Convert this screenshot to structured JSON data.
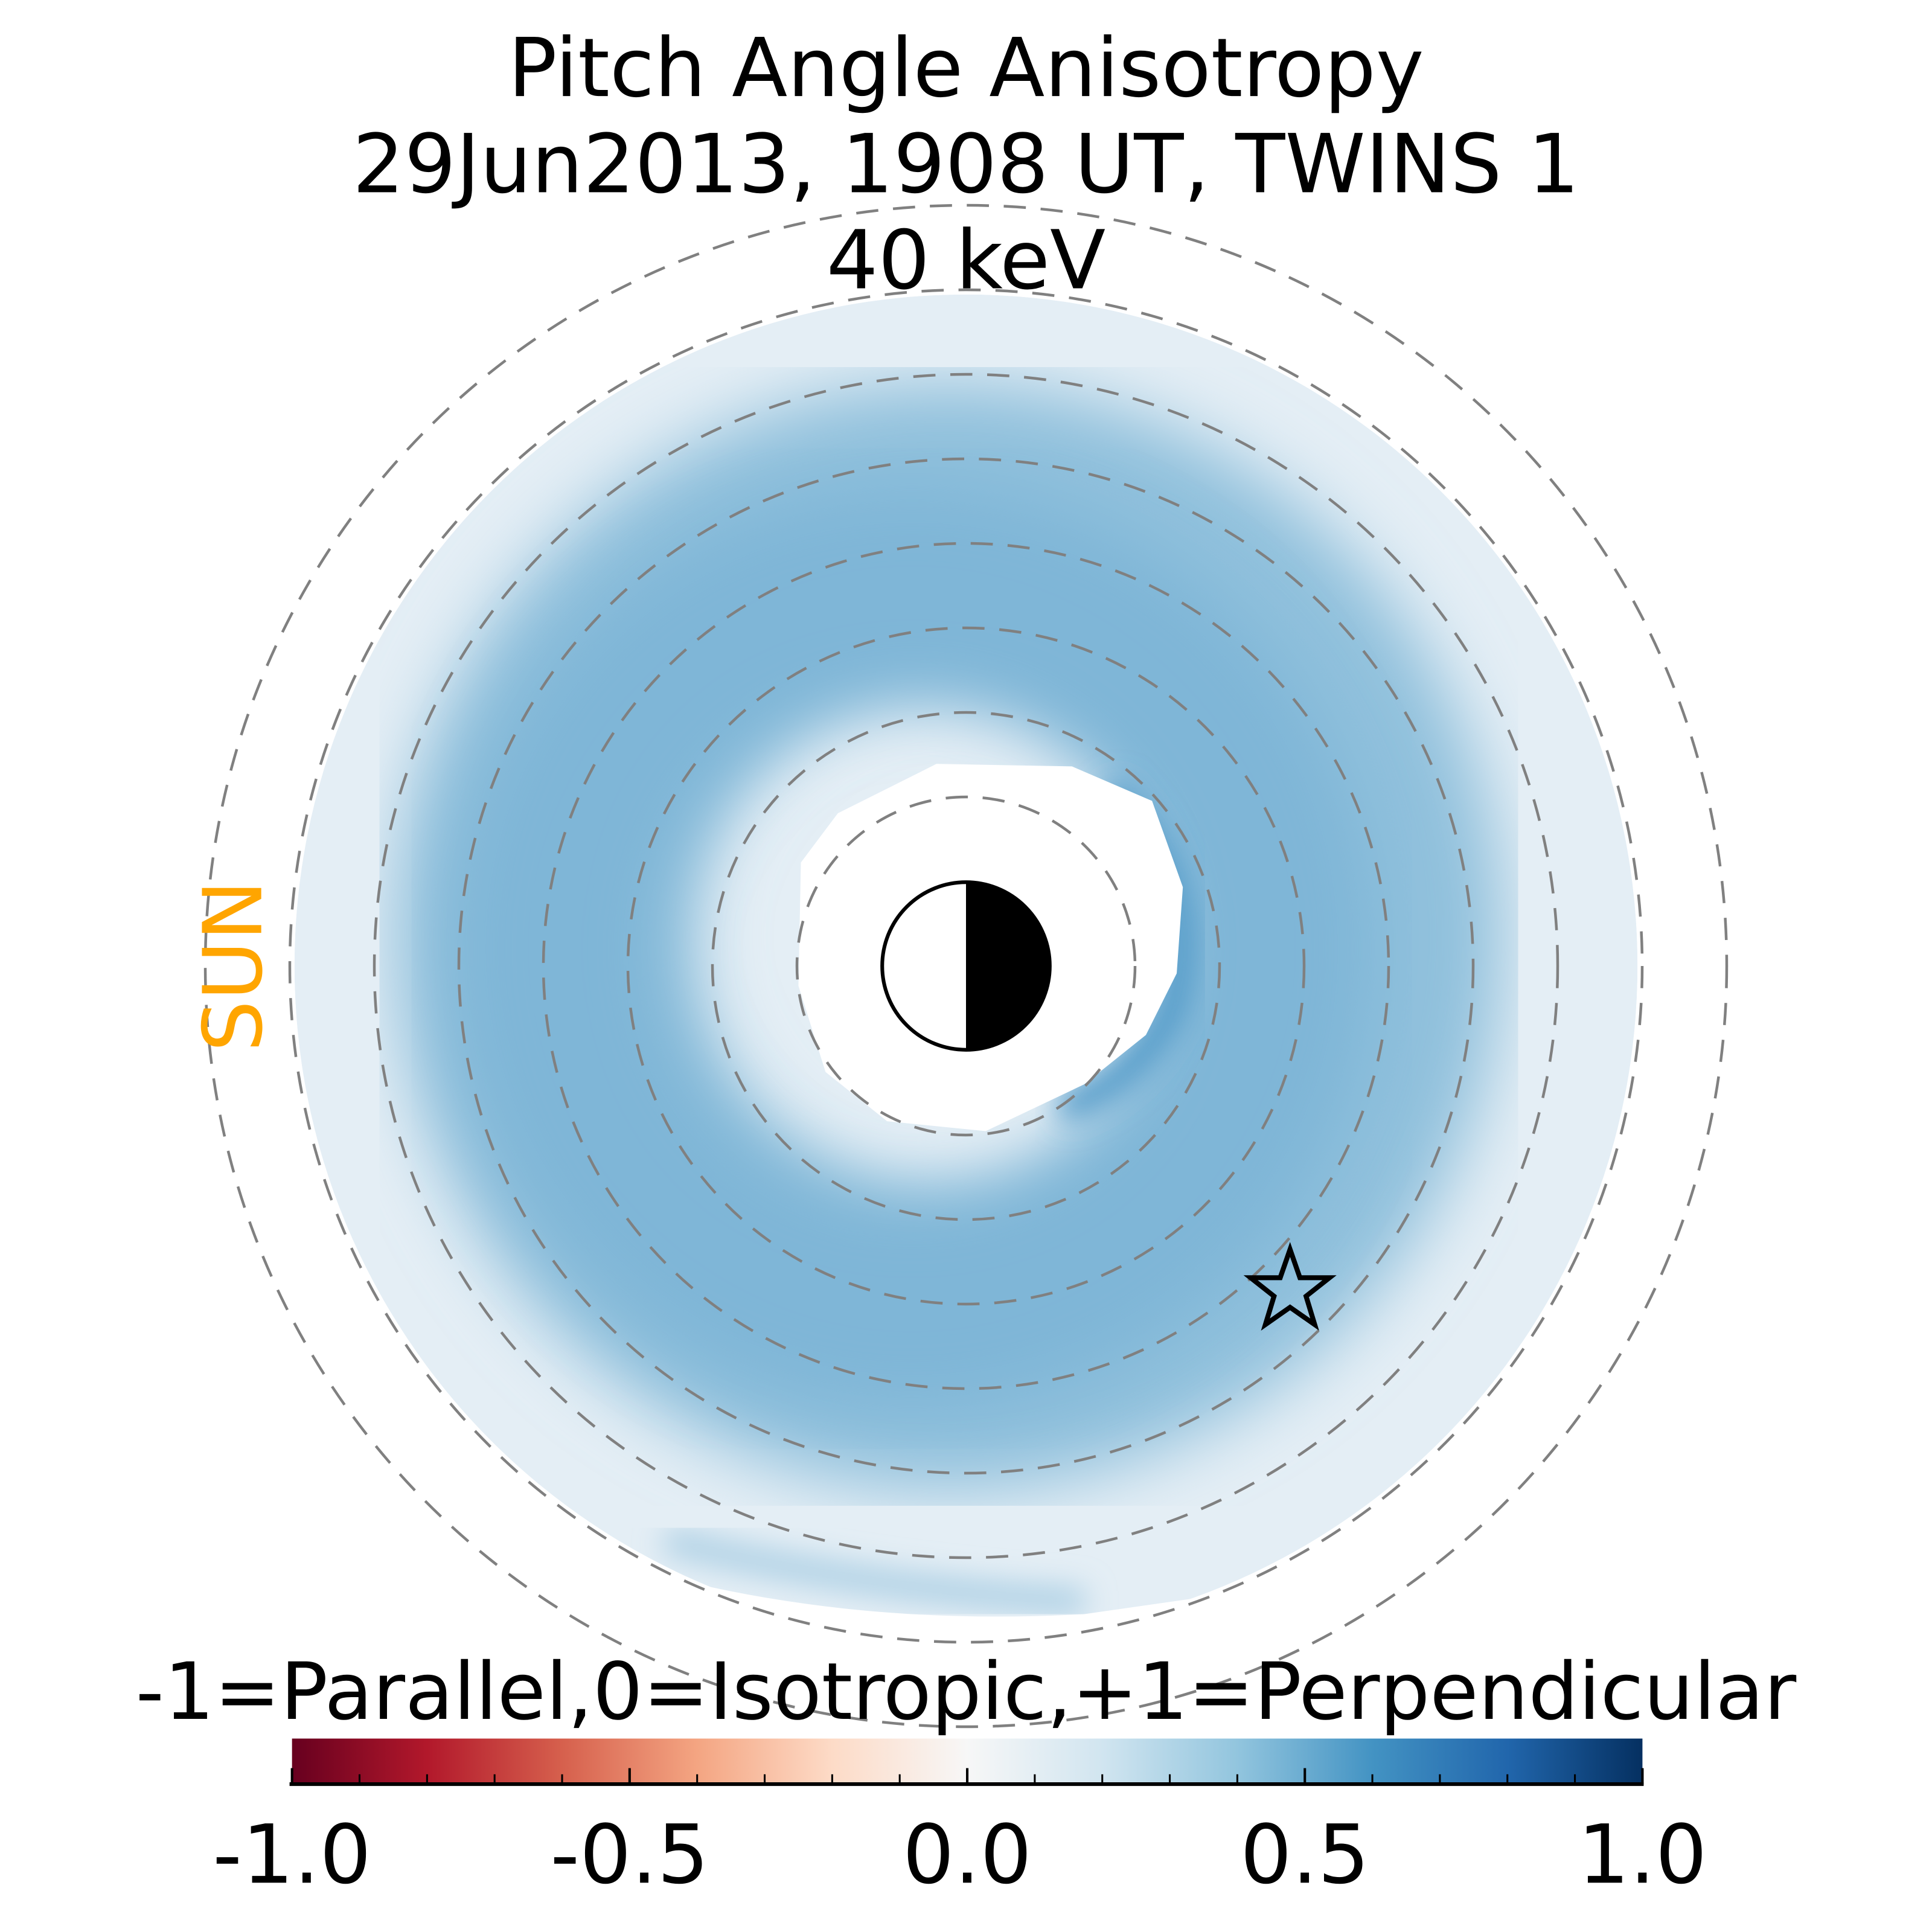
{
  "chart_data": {
    "type": "heatmap",
    "projection": "polar",
    "title": [
      "Pitch Angle Anisotropy",
      "29Jun2013, 1908 UT,  TWINS 1",
      "40 keV"
    ],
    "sun_label": "SUN",
    "colorbar": {
      "label": "-1=Parallel,0=Isotropic,+1=Perpendicular",
      "range": [
        -1.0,
        1.0
      ],
      "tick_labels": [
        "-1.0",
        "-0.5",
        "0.0",
        "0.5",
        "1.0"
      ],
      "tick_values": [
        -1.0,
        -0.5,
        0.0,
        0.5,
        1.0
      ],
      "minor_step": 0.1,
      "colormap": "RdBu",
      "colors": [
        "#67001f",
        "#b2182b",
        "#d6604d",
        "#f4a582",
        "#fddbc7",
        "#f7f7f7",
        "#d1e5f0",
        "#92c5de",
        "#4393c3",
        "#2166ac",
        "#053061"
      ]
    },
    "dashed_rings": 8,
    "summary": {
      "max_anisotropy_region": "ring near dusk/midnight side",
      "peak_value": 0.55,
      "typical_ring_value": 0.4,
      "outer_value": 0.1
    },
    "markers": [
      "earth-day-night",
      "spacecraft-star"
    ]
  }
}
